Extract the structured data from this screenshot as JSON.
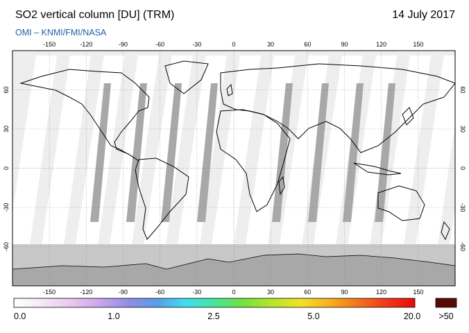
{
  "header": {
    "title": "SO2 vertical column [DU] (TRM)",
    "date": "14 July 2017",
    "subtitle": "OMI  –  KNMI/FMI/NASA"
  },
  "map": {
    "projection": "equirectangular",
    "lon_range": [
      -180,
      180
    ],
    "lat_range": [
      -90,
      90
    ],
    "lon_ticks": [
      -150,
      -120,
      -90,
      -60,
      -30,
      0,
      30,
      60,
      90,
      120,
      150
    ],
    "lat_ticks": [
      60,
      30,
      0,
      -30,
      -60
    ],
    "grid": true,
    "colors": {
      "background": "#eeeeee",
      "swath": "#ffffff",
      "no_data": "#c8c8c8",
      "sunglint": "#a8a8a8",
      "coastline": "#000000"
    }
  },
  "colorbar": {
    "gradient": [
      "#ffffff",
      "#f6e8f6",
      "#ebc7ef",
      "#c9a6ec",
      "#8f8fe6",
      "#5a9ce8",
      "#3de0ee",
      "#45e59a",
      "#71e23f",
      "#b8e52a",
      "#f0e328",
      "#f8b020",
      "#f4741c",
      "#ee3a18",
      "#e80a0a"
    ],
    "overflow_color": "#5a0a06",
    "labels": [
      "0.0",
      "1.0",
      "2.5",
      "5.0",
      "20.0",
      ">50"
    ]
  }
}
